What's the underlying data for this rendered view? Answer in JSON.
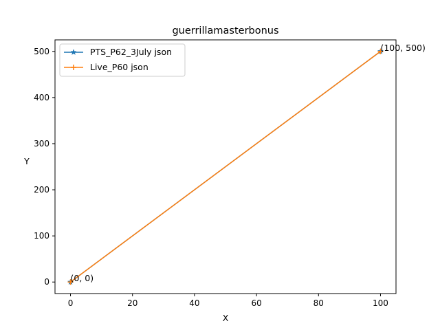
{
  "chart_data": {
    "type": "line",
    "title": "guerrillamasterbonus",
    "xlabel": "X",
    "ylabel": "Y",
    "xlim": [
      -5,
      105
    ],
    "ylim": [
      -25,
      525
    ],
    "x_ticks": [
      0,
      20,
      40,
      60,
      80,
      100
    ],
    "y_ticks": [
      0,
      100,
      200,
      300,
      400,
      500
    ],
    "grid": false,
    "legend_position": "upper-left",
    "series": [
      {
        "name": "PTS_P62_3July json",
        "color": "#1f77b4",
        "marker": "star",
        "x": [
          0,
          100
        ],
        "y": [
          0,
          500
        ]
      },
      {
        "name": "Live_P60 json",
        "color": "#ff7f0e",
        "marker": "plus",
        "x": [
          0,
          100
        ],
        "y": [
          0,
          500
        ]
      }
    ],
    "annotations": [
      {
        "text": "(0, 0)",
        "x": 0,
        "y": 0
      },
      {
        "text": "(100, 500)",
        "x": 100,
        "y": 500
      }
    ]
  }
}
